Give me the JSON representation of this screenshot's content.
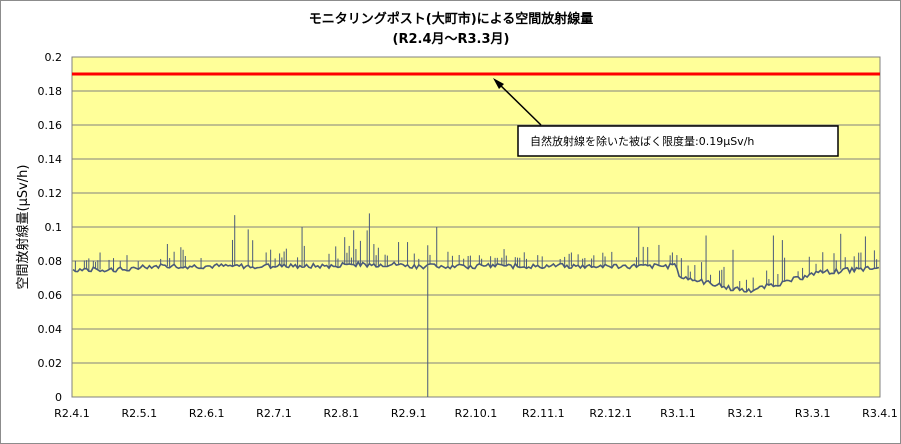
{
  "chart_data": {
    "type": "line",
    "title": "モニタリングポスト(大町市)による空間放射線量",
    "subtitle": "(R2.4月～R3.3月)",
    "xlabel": "",
    "ylabel": "空間放射線量(μSv/h)",
    "ylim": [
      0,
      0.2
    ],
    "yticks": [
      "0",
      "0.02",
      "0.04",
      "0.06",
      "0.08",
      "0.1",
      "0.12",
      "0.14",
      "0.16",
      "0.18",
      "0.2"
    ],
    "xticks": [
      "R2.4.1",
      "R2.5.1",
      "R2.6.1",
      "R2.7.1",
      "R2.8.1",
      "R2.9.1",
      "R2.10.1",
      "R2.11.1",
      "R2.12.1",
      "R3.1.1",
      "R3.2.1",
      "R3.3.1",
      "R3.4.1"
    ],
    "grid": true,
    "plot_background": "#ffff99",
    "series": [
      {
        "color": "#4a5a7a",
        "x_range": [
          "R2.4.1",
          "R3.4.1"
        ],
        "y_monthly": [
          {
            "month": "R2.4",
            "base": 0.075,
            "max": 0.085
          },
          {
            "month": "R2.5",
            "base": 0.077,
            "max": 0.09
          },
          {
            "month": "R2.6",
            "base": 0.077,
            "max": 0.107
          },
          {
            "month": "R2.7",
            "base": 0.077,
            "max": 0.1
          },
          {
            "month": "R2.8",
            "base": 0.078,
            "max": 0.108
          },
          {
            "month": "R2.9",
            "base": 0.077,
            "max": 0.1,
            "min": 0.0
          },
          {
            "month": "R2.10",
            "base": 0.077,
            "max": 0.087
          },
          {
            "month": "R2.11",
            "base": 0.077,
            "max": 0.085
          },
          {
            "month": "R2.12",
            "base": 0.077,
            "max": 0.1
          },
          {
            "month": "R3.1",
            "base": 0.068,
            "max": 0.095
          },
          {
            "month": "R3.2",
            "base": 0.065,
            "max": 0.095
          },
          {
            "month": "R3.3",
            "base": 0.075,
            "max": 0.096
          }
        ]
      }
    ],
    "reference_line": {
      "y": 0.19,
      "color": "#ff0000",
      "label": "自然放射線を除いた被ばく限度量:0.19μSv/h"
    }
  }
}
